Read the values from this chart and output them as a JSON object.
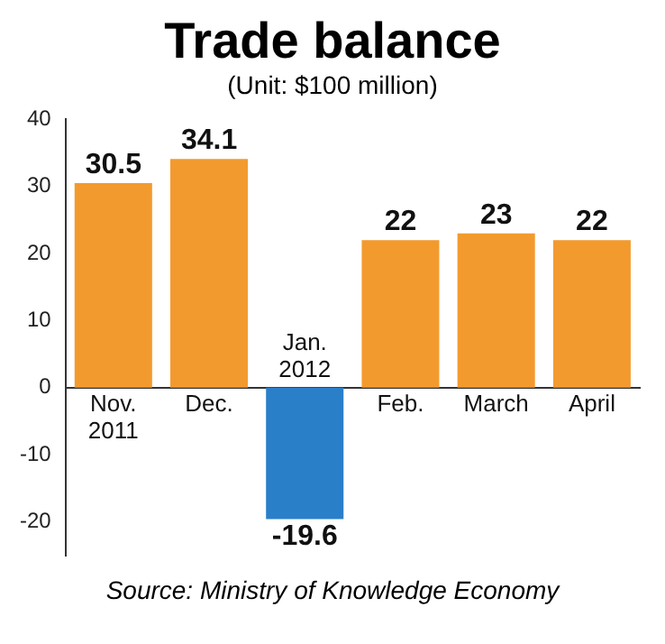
{
  "chart_data": {
    "type": "bar",
    "title": "Trade balance",
    "subtitle": "(Unit: $100 million)",
    "categories": [
      "Nov. 2011",
      "Dec.",
      "Jan. 2012",
      "Feb.",
      "March",
      "April"
    ],
    "values": [
      30.5,
      34.1,
      -19.6,
      22,
      23,
      22
    ],
    "colors": [
      "#f39a2e",
      "#f39a2e",
      "#2a7fc9",
      "#f39a2e",
      "#f39a2e",
      "#f39a2e"
    ],
    "ylim": [
      -25,
      40
    ],
    "yticks": [
      -20,
      -10,
      0,
      10,
      20,
      30,
      40
    ],
    "data_labels": true,
    "annotations": [
      "Source: Ministry of Knowledge Economy"
    ]
  }
}
